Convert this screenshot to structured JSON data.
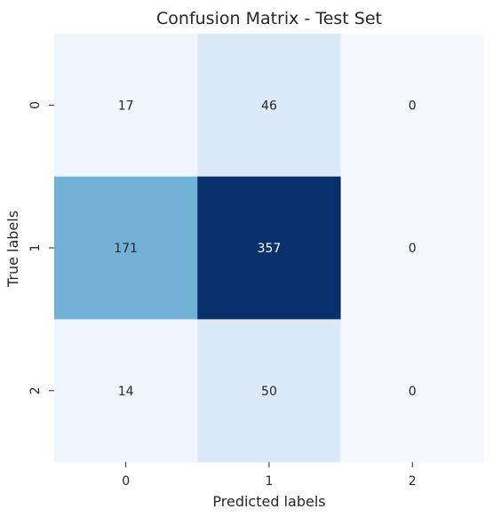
{
  "chart_data": {
    "type": "heatmap",
    "title": "Confusion Matrix - Test Set",
    "xlabel": "Predicted labels",
    "ylabel": "True labels",
    "x_categories": [
      "0",
      "1",
      "2"
    ],
    "y_categories": [
      "0",
      "1",
      "2"
    ],
    "values": [
      [
        17,
        46,
        0
      ],
      [
        171,
        357,
        0
      ],
      [
        14,
        50,
        0
      ]
    ],
    "colormap": "Blues",
    "colorbar": false,
    "value_range": [
      0,
      357
    ],
    "colors": {
      "cells": [
        [
          "#eff6fd",
          "#dce9f6",
          "#f6fafe"
        ],
        [
          "#72b1d7",
          "#08306b",
          "#f6fafe"
        ],
        [
          "#eff6fd",
          "#dce9f6",
          "#f6fafe"
        ]
      ],
      "light_text": "#262626",
      "dark_text": "#ffffff",
      "tick_color": "#262626"
    }
  }
}
